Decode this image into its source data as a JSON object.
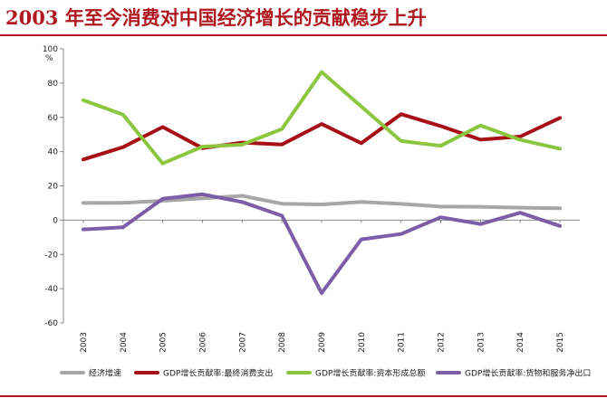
{
  "title": "2003 年至今消费对中国经济增长的贡献稳步上升",
  "chart_data": {
    "type": "line",
    "unit": "%",
    "x": [
      "2003",
      "2004",
      "2005",
      "2006",
      "2007",
      "2008",
      "2009",
      "2010",
      "2011",
      "2012",
      "2013",
      "2014",
      "2015"
    ],
    "ylim": [
      -60,
      100
    ],
    "yticks": [
      -60,
      -40,
      -20,
      0,
      20,
      40,
      60,
      80,
      100
    ],
    "grid": false,
    "legend_position": "bottom",
    "series": [
      {
        "name": "经济增速",
        "color": "#a6a6a6",
        "values": [
          10.0,
          10.1,
          11.3,
          12.7,
          14.2,
          9.6,
          9.2,
          10.6,
          9.5,
          7.9,
          7.8,
          7.3,
          6.9
        ]
      },
      {
        "name": "GDP增长贡献率:最终消费支出",
        "color": "#a50f15",
        "values": [
          35.4,
          42.6,
          54.4,
          42.0,
          45.3,
          44.2,
          56.1,
          44.9,
          61.9,
          54.9,
          47.0,
          48.8,
          59.7
        ]
      },
      {
        "name": "GDP增长贡献率:资本形成总额",
        "color": "#8cc63f",
        "values": [
          70.0,
          61.6,
          33.1,
          42.9,
          44.1,
          53.2,
          86.5,
          66.3,
          46.2,
          43.4,
          55.3,
          46.9,
          41.7
        ]
      },
      {
        "name": "GDP增长贡献率:货物和服务净出口",
        "color": "#7b5ea7",
        "values": [
          -5.4,
          -4.2,
          12.5,
          15.1,
          10.6,
          2.6,
          -42.6,
          -11.2,
          -8.1,
          1.7,
          -2.3,
          4.3,
          -3.4
        ]
      }
    ]
  }
}
